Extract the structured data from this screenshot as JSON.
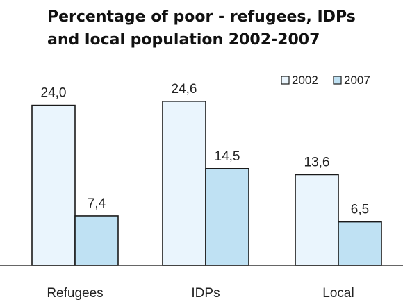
{
  "title_lines": [
    "Percentage of poor - refugees, IDPs",
    "and local population 2002-2007"
  ],
  "chart_data": {
    "type": "bar",
    "title": "Percentage of poor - refugees, IDPs and local population 2002-2007",
    "categories": [
      "Refugees",
      "IDPs",
      "Local"
    ],
    "series": [
      {
        "name": "2002",
        "values": [
          24.0,
          24.6,
          13.6
        ],
        "labels": [
          "24,0",
          "24,6",
          "13,6"
        ],
        "color": "#eaf5fd"
      },
      {
        "name": "2007",
        "values": [
          7.4,
          14.5,
          6.5
        ],
        "labels": [
          "7,4",
          "14,5",
          "6,5"
        ],
        "color": "#bfe1f3"
      }
    ],
    "ylim": [
      0,
      30
    ],
    "grid": false,
    "legend_position": "top-right",
    "bar_outline_color": "#1a1a1a"
  }
}
